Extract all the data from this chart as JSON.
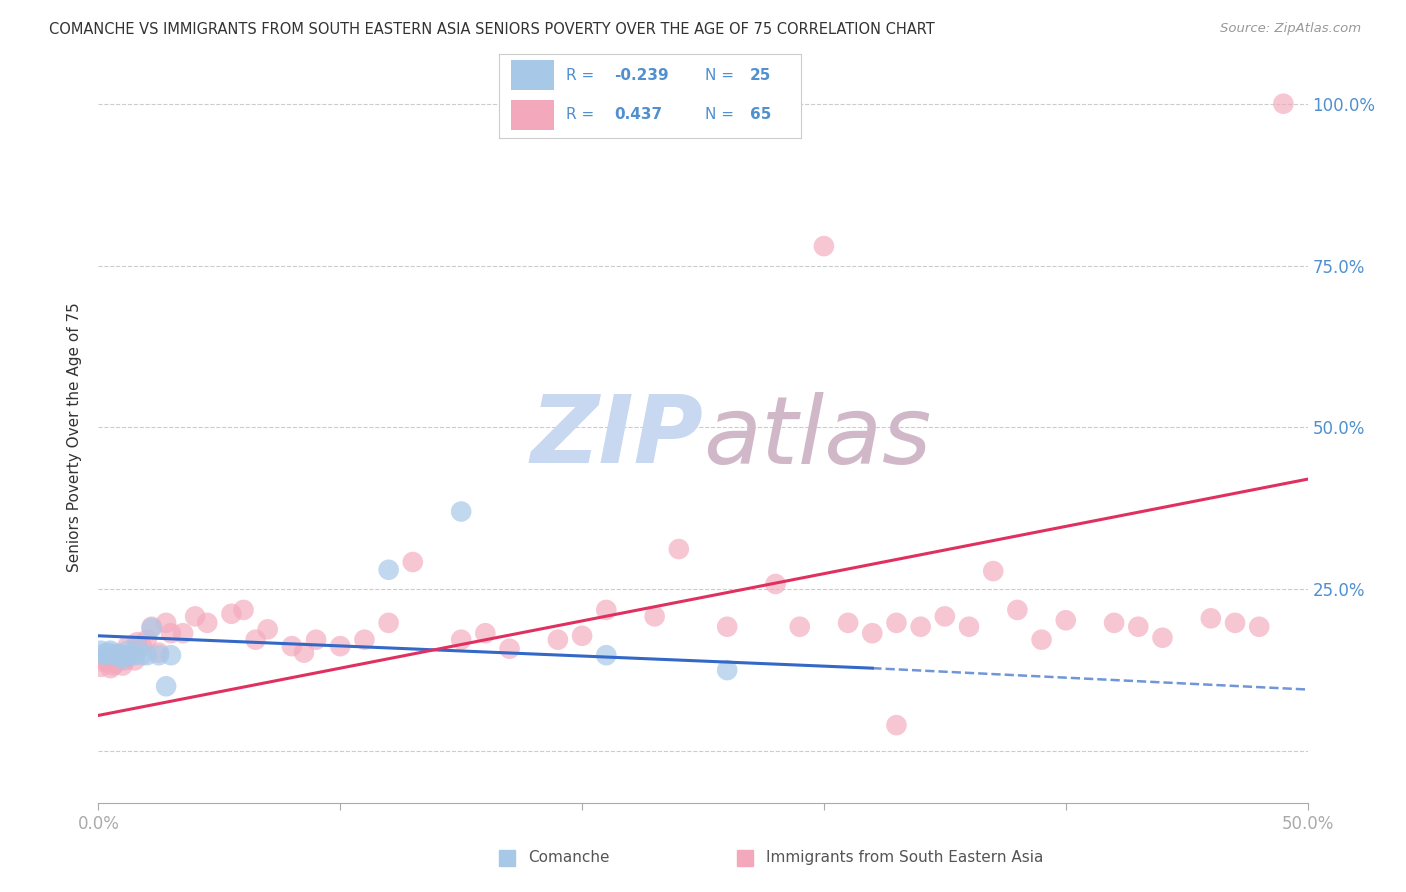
{
  "title": "COMANCHE VS IMMIGRANTS FROM SOUTH EASTERN ASIA SENIORS POVERTY OVER THE AGE OF 75 CORRELATION CHART",
  "source": "Source: ZipAtlas.com",
  "ylabel": "Seniors Poverty Over the Age of 75",
  "yticks": [
    0.0,
    0.25,
    0.5,
    0.75,
    1.0
  ],
  "ytick_labels": [
    "",
    "25.0%",
    "50.0%",
    "75.0%",
    "100.0%"
  ],
  "xticks": [
    0.0,
    0.1,
    0.2,
    0.3,
    0.4,
    0.5
  ],
  "xtick_labels": [
    "0.0%",
    "",
    "",
    "",
    "",
    "50.0%"
  ],
  "xmin": 0.0,
  "xmax": 0.5,
  "ymin": -0.08,
  "ymax": 1.05,
  "legend_R1": "-0.239",
  "legend_N1": "25",
  "legend_R2": "0.437",
  "legend_N2": "65",
  "color_comanche": "#a8c8e8",
  "color_immigrants": "#f4a8bc",
  "color_line_comanche": "#3368c8",
  "color_line_immigrants": "#e03060",
  "color_axis_labels": "#5090d0",
  "watermark_zip": "#c8d8f0",
  "watermark_atlas": "#d0b8c8",
  "background_color": "#ffffff",
  "legend_text_color": "#5090d0",
  "legend_value_color": "#5090d0",
  "comanche_x": [
    0.001,
    0.002,
    0.003,
    0.004,
    0.005,
    0.006,
    0.007,
    0.008,
    0.009,
    0.01,
    0.011,
    0.012,
    0.013,
    0.015,
    0.016,
    0.018,
    0.02,
    0.022,
    0.025,
    0.028,
    0.03,
    0.12,
    0.15,
    0.21,
    0.26
  ],
  "comanche_y": [
    0.155,
    0.15,
    0.148,
    0.152,
    0.155,
    0.15,
    0.148,
    0.15,
    0.148,
    0.142,
    0.148,
    0.155,
    0.148,
    0.148,
    0.16,
    0.148,
    0.148,
    0.19,
    0.148,
    0.1,
    0.148,
    0.28,
    0.37,
    0.148,
    0.125
  ],
  "immigrants_x": [
    0.001,
    0.002,
    0.003,
    0.004,
    0.005,
    0.006,
    0.007,
    0.008,
    0.009,
    0.01,
    0.011,
    0.012,
    0.013,
    0.015,
    0.016,
    0.018,
    0.02,
    0.022,
    0.025,
    0.028,
    0.03,
    0.035,
    0.04,
    0.045,
    0.055,
    0.06,
    0.065,
    0.07,
    0.08,
    0.085,
    0.09,
    0.1,
    0.11,
    0.12,
    0.13,
    0.15,
    0.16,
    0.17,
    0.19,
    0.2,
    0.21,
    0.23,
    0.24,
    0.26,
    0.28,
    0.29,
    0.31,
    0.32,
    0.33,
    0.34,
    0.35,
    0.36,
    0.37,
    0.38,
    0.39,
    0.4,
    0.42,
    0.43,
    0.44,
    0.46,
    0.47,
    0.48,
    0.49,
    0.3,
    0.33
  ],
  "immigrants_y": [
    0.13,
    0.138,
    0.14,
    0.142,
    0.128,
    0.132,
    0.135,
    0.15,
    0.145,
    0.132,
    0.14,
    0.162,
    0.148,
    0.14,
    0.168,
    0.162,
    0.172,
    0.192,
    0.152,
    0.198,
    0.182,
    0.182,
    0.208,
    0.198,
    0.212,
    0.218,
    0.172,
    0.188,
    0.162,
    0.152,
    0.172,
    0.162,
    0.172,
    0.198,
    0.292,
    0.172,
    0.182,
    0.158,
    0.172,
    0.178,
    0.218,
    0.208,
    0.312,
    0.192,
    0.258,
    0.192,
    0.198,
    0.182,
    0.198,
    0.192,
    0.208,
    0.192,
    0.278,
    0.218,
    0.172,
    0.202,
    0.198,
    0.192,
    0.175,
    0.205,
    0.198,
    0.192,
    1.0,
    0.78,
    0.04
  ],
  "line_com_x0": 0.0,
  "line_com_y0": 0.178,
  "line_com_x1": 0.32,
  "line_com_y1": 0.128,
  "line_com_dash_x1": 0.5,
  "line_com_dash_y1": 0.095,
  "line_imm_x0": 0.0,
  "line_imm_y0": 0.055,
  "line_imm_x1": 0.5,
  "line_imm_y1": 0.42
}
